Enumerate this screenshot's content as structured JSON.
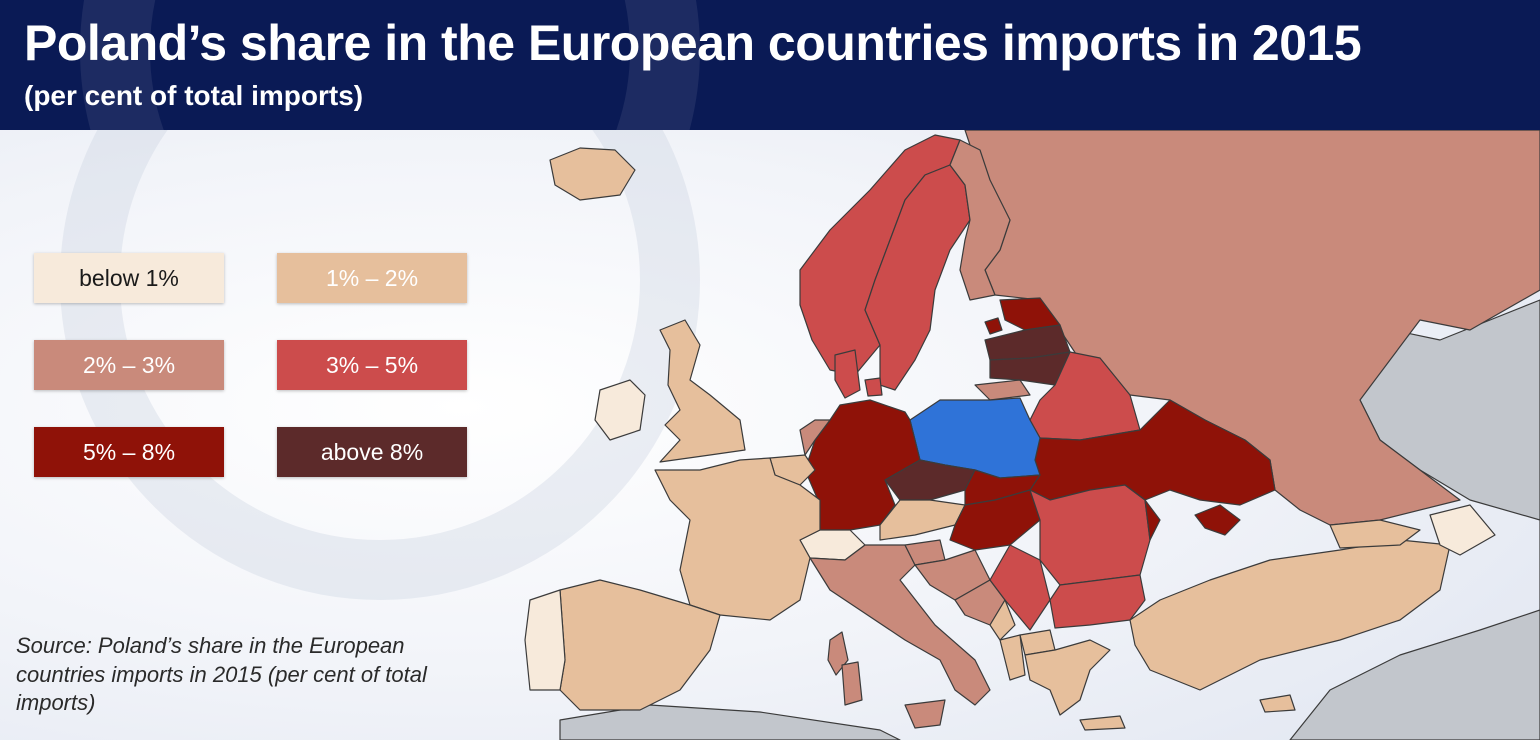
{
  "header": {
    "title": "Poland’s share in the European countries imports in 2015",
    "subtitle": "(per cent of total imports)"
  },
  "legend": [
    {
      "label": "below 1%",
      "color": "#f7eadb",
      "text_color": "#1a1a1a"
    },
    {
      "label": "1% – 2%",
      "color": "#e6bf9c",
      "text_color": "#ffffff"
    },
    {
      "label": "2% – 3%",
      "color": "#c98a7b",
      "text_color": "#ffffff"
    },
    {
      "label": "3% – 5%",
      "color": "#cc4c4c",
      "text_color": "#ffffff"
    },
    {
      "label": "5% – 8%",
      "color": "#8f1208",
      "text_color": "#ffffff"
    },
    {
      "label": "above 8%",
      "color": "#5c2a2a",
      "text_color": "#ffffff"
    }
  ],
  "colors": {
    "poland": "#2f73d8",
    "non_europe": "#c2c6cc",
    "sea": "#e9edf5",
    "border": "#3b3b3b"
  },
  "source": "Source: Poland’s share in the European countries imports in 2015 (per cent of total imports)"
}
